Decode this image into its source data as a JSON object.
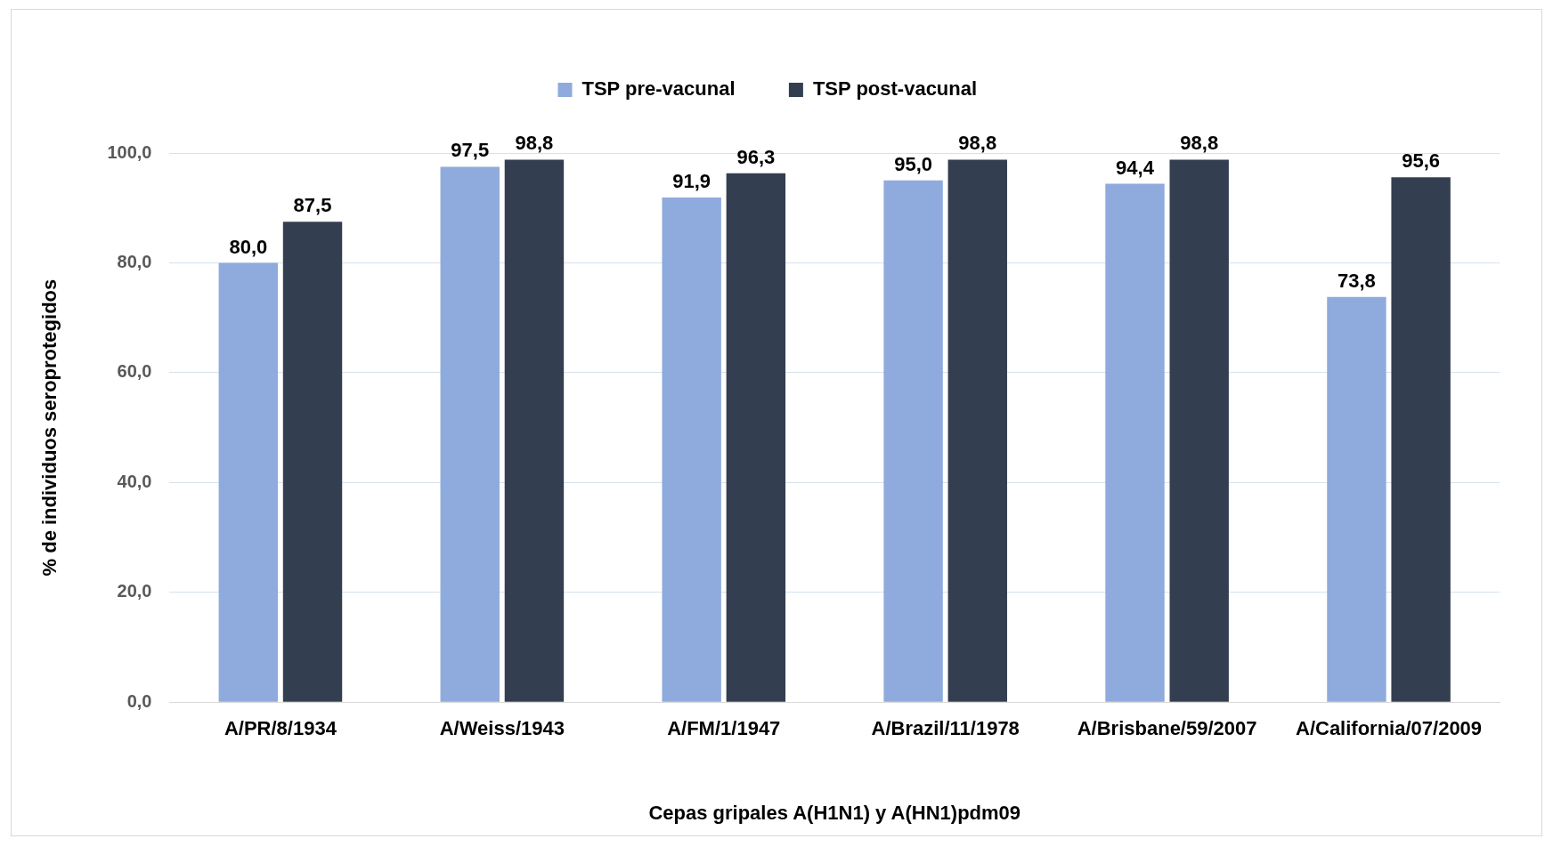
{
  "chart_data": {
    "type": "bar",
    "xlabel": "Cepas gripales A(H1N1) y A(HN1)pdm09",
    "ylabel": "% de individuos seroprotegidos",
    "categories": [
      "A/PR/8/1934",
      "A/Weiss/1943",
      "A/FM/1/1947",
      "A/Brazil/11/1978",
      "A/Brisbane/59/2007",
      "A/California/07/2009"
    ],
    "series": [
      {
        "name": "TSP pre-vacunal",
        "color": "#8faadc",
        "values": [
          80.0,
          97.5,
          91.9,
          95.0,
          94.4,
          73.8
        ],
        "value_labels": [
          "80,0",
          "97,5",
          "91,9",
          "95,0",
          "94,4",
          "73,8"
        ]
      },
      {
        "name": "TSP post-vacunal",
        "color": "#333f50",
        "values": [
          87.5,
          98.8,
          96.3,
          98.8,
          98.8,
          95.6
        ],
        "value_labels": [
          "87,5",
          "98,8",
          "96,3",
          "98,8",
          "98,8",
          "95,6"
        ]
      }
    ],
    "ylim": [
      0,
      100
    ],
    "yticks": [
      {
        "value": 0,
        "label": "0,0"
      },
      {
        "value": 20,
        "label": "20,0"
      },
      {
        "value": 40,
        "label": "40,0"
      },
      {
        "value": 60,
        "label": "60,0"
      },
      {
        "value": 80,
        "label": "80,0"
      },
      {
        "value": 100,
        "label": "100,0"
      }
    ],
    "grid": "y",
    "legend": "top"
  }
}
